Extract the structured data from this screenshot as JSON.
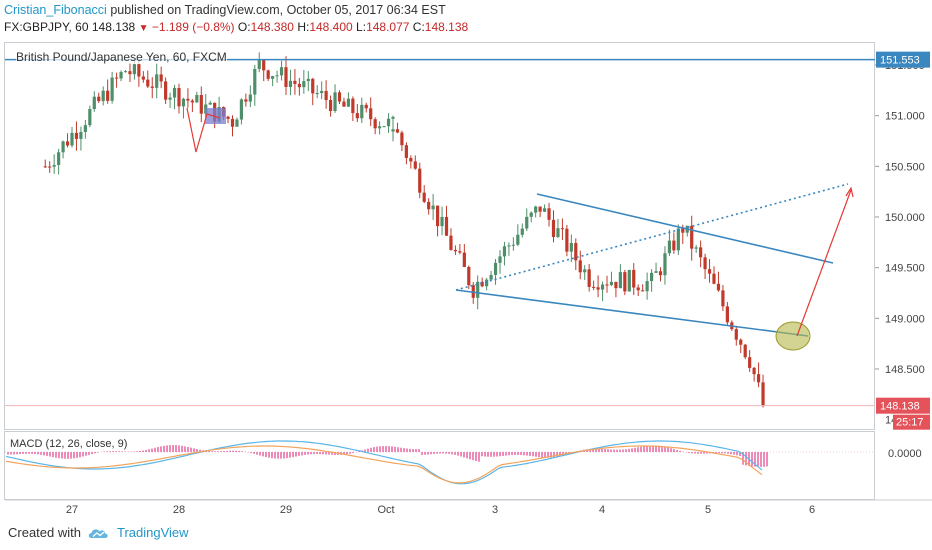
{
  "header": {
    "author": "Cristian_Fibonacci",
    "published": "published on TradingView.com, October 05, 2017 06:34 EST",
    "symbol": "FX:GBPJPY, 60",
    "last": "148.138",
    "change": "−1.189 (−0.8%)",
    "open_label": "O:",
    "open": "148.380",
    "high_label": "H:",
    "high": "148.400",
    "low_label": "L:",
    "low": "148.077",
    "close_label": "C:",
    "close": "148.138"
  },
  "legend": "British Pound/Japanese Yen, 60, FXCM",
  "macd_legend": "MACD (12, 26, close, 9)",
  "price_badges": {
    "top": "151.553",
    "last": "148.138",
    "countdown": "25:17"
  },
  "footer": {
    "created_with": "Created with",
    "brand": "TradingView"
  },
  "colors": {
    "up": "#4e8f6a",
    "down": "#c0392b",
    "line": "#3a87c0",
    "arrow": "#e53935",
    "highlight": "#b5b84a",
    "badge": "#3a87c0",
    "badge_last": "#e5535a",
    "macd": "#5cb5e8",
    "signal": "#f3a45b",
    "hist": "#e55a9a"
  },
  "chart_data": {
    "type": "candlestick",
    "ylim": [
      147.9,
      151.7
    ],
    "y_ticks": [
      "151.500",
      "151.000",
      "150.500",
      "150.000",
      "149.500",
      "149.000",
      "148.500"
    ],
    "x_ticks": [
      "27",
      "28",
      "29",
      "Oct",
      "3",
      "4",
      "5",
      "6"
    ],
    "macd_ticks": [
      "0.0000"
    ],
    "key_points": [
      {
        "x": "Sep 26 18:00",
        "y": 150.5
      },
      {
        "x": "Sep 27 12:00",
        "y": 151.45
      },
      {
        "x": "Sep 28 12:00",
        "y": 150.95
      },
      {
        "x": "Sep 28 18:00",
        "y": 151.5
      },
      {
        "x": "Sep 29 12:00",
        "y": 151.1
      },
      {
        "x": "Sep 30 00:00",
        "y": 150.9
      },
      {
        "x": "Oct 2 00:00",
        "y": 150.9
      },
      {
        "x": "Oct 2 12:00",
        "y": 149.8
      },
      {
        "x": "Oct 2 18:00",
        "y": 149.3
      },
      {
        "x": "Oct 3 09:00",
        "y": 150.1
      },
      {
        "x": "Oct 3 20:00",
        "y": 149.4
      },
      {
        "x": "Oct 4 10:00",
        "y": 149.35
      },
      {
        "x": "Oct 4 17:00",
        "y": 149.9
      },
      {
        "x": "Oct 5 00:00",
        "y": 149.3
      },
      {
        "x": "Oct 5 08:00",
        "y": 148.6
      },
      {
        "x": "Oct 5 11:00",
        "y": 148.14
      }
    ],
    "horizontal_level": 151.553,
    "last_price": 148.138
  }
}
